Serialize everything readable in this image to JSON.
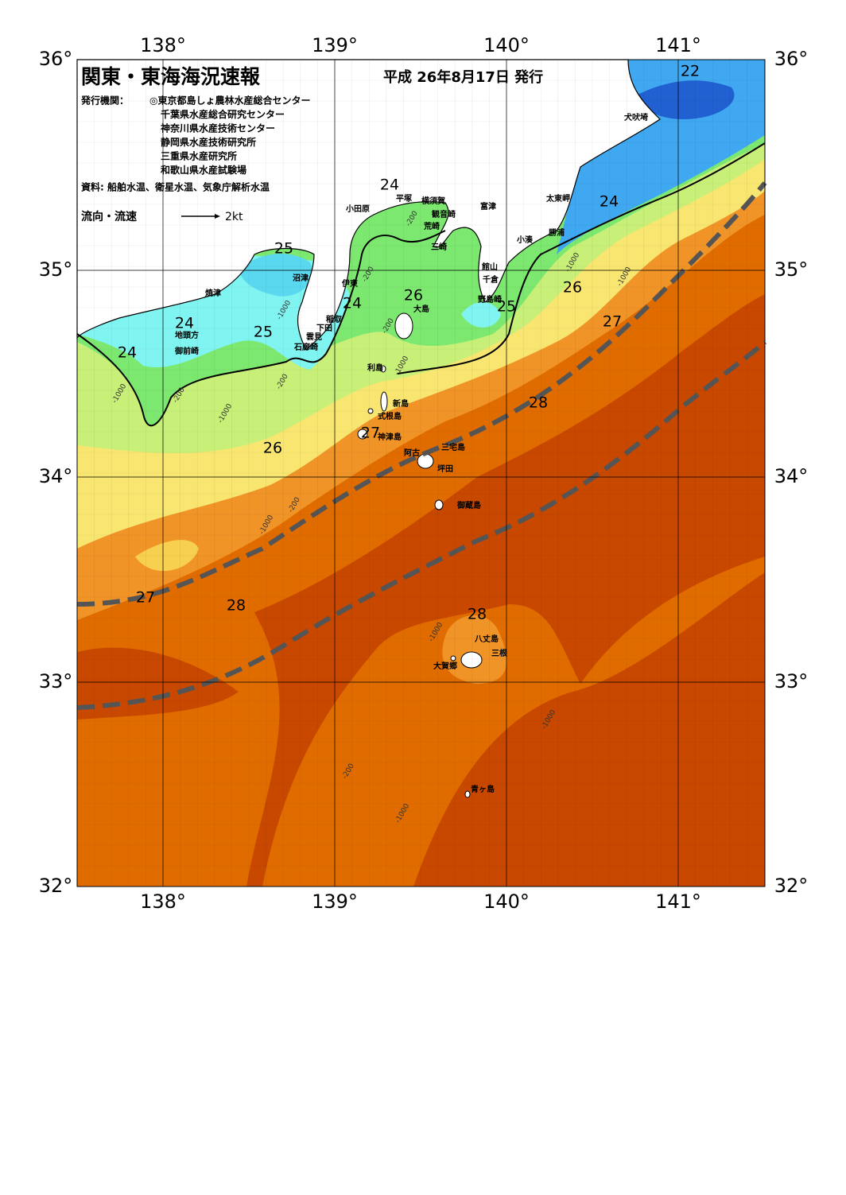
{
  "header": {
    "title": "関東・東海海況速報",
    "date": "平成 26年8月17日 発行",
    "issuer_label": "発行機関：",
    "issuers": [
      "◎東京都島しょ農林水産総合センター",
      "千葉県水産総合研究センター",
      "神奈川県水産技術センター",
      "静岡県水産技術研究所",
      "三重県水産研究所",
      "和歌山県水産試験場"
    ],
    "source": "資料: 船舶水温、衛星水温、気象庁解析水温",
    "legend_label": "流向・流速",
    "legend_speed": "2kt"
  },
  "axes": {
    "lon_labels": [
      "138°",
      "139°",
      "140°",
      "141°"
    ],
    "lat_labels": [
      "36°",
      "35°",
      "34°",
      "33°",
      "32°"
    ]
  },
  "places": [
    "犬吠埼",
    "太東岬",
    "勝浦",
    "小湊",
    "富津",
    "横須賀",
    "平塚",
    "観音崎",
    "荒崎",
    "三崎",
    "館山",
    "千倉",
    "野島崎",
    "小田原",
    "沼津",
    "伊東",
    "稲取",
    "下田",
    "雲見",
    "石廊崎",
    "焼津",
    "地頭方",
    "御前崎",
    "大島",
    "利島",
    "新島",
    "式根島",
    "神津島",
    "阿古",
    "三宅島",
    "坪田",
    "御蔵島",
    "八丈島",
    "三根",
    "大賀郷",
    "青ヶ島"
  ],
  "temperature_labels": [
    22,
    24,
    24,
    25,
    26,
    24,
    26,
    25,
    27,
    24,
    25,
    24,
    28,
    27,
    26,
    27,
    28,
    28
  ],
  "depth_labels": [
    "-1000",
    "-200",
    "-1000",
    "-200",
    "-1000",
    "-200",
    "-1000",
    "-200",
    "-200",
    "-1000",
    "-1000",
    "-200",
    "-1000",
    "-1000",
    "-1000",
    "-200",
    "-1000"
  ]
}
